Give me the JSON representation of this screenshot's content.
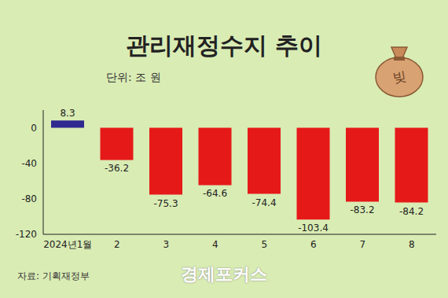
{
  "chart_data": {
    "type": "bar",
    "title": "관리재정수지 추이",
    "subtitle": "단위: 조 원",
    "categories": [
      "2024년1월",
      "2",
      "3",
      "4",
      "5",
      "6",
      "7",
      "8"
    ],
    "values": [
      8.3,
      -36.2,
      -75.3,
      -64.6,
      -74.4,
      -103.4,
      -83.2,
      -84.2
    ],
    "colors": [
      "#2e2a8f",
      "#e61919",
      "#e61919",
      "#e61919",
      "#e61919",
      "#e61919",
      "#e61919",
      "#e61919"
    ],
    "ylim": [
      -120,
      20
    ],
    "yticks": [
      -120,
      -80,
      -40,
      0
    ],
    "grid": false,
    "data_labels": true,
    "annotations": [
      "자료: 기획재정부",
      "경제포커스",
      "빚"
    ]
  }
}
